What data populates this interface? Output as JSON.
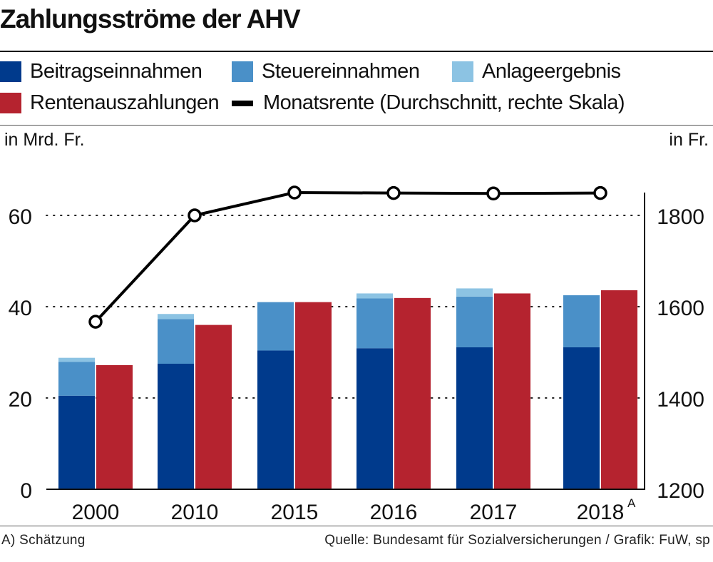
{
  "title": "Zahlungsströme der AHV",
  "legend": {
    "beitrag": "Beitragseinnahmen",
    "steuer": "Steuereinnahmen",
    "anlage": "Anlageergebnis",
    "renten": "Rentenauszahlungen",
    "monat": "Monatsrente (Durchschnitt, rechte Skala)"
  },
  "axis": {
    "left_unit": "in Mrd. Fr.",
    "right_unit": "in Fr."
  },
  "footer": {
    "note": "A) Schätzung",
    "source": "Quelle: Bundesamt für Sozialversicherungen / Grafik: FuW, sp"
  },
  "colors": {
    "beitrag": "#003a8c",
    "steuer": "#4a90c8",
    "anlage": "#8cc3e3",
    "renten": "#b5232f",
    "line": "#000000",
    "grid": "#222222"
  },
  "chart_data": {
    "type": "bar",
    "title": "Zahlungsströme der AHV",
    "categories": [
      "2000",
      "2010",
      "2015",
      "2016",
      "2017",
      "2018"
    ],
    "category_marks": [
      "",
      "",
      "",
      "",
      "",
      "A"
    ],
    "ylabel": "in Mrd. Fr.",
    "ylabel_right": "in Fr.",
    "ylim": [
      0,
      65
    ],
    "yticks": [
      0,
      20,
      40,
      60
    ],
    "ylim_right": [
      1200,
      1850
    ],
    "yticks_right": [
      1200,
      1400,
      1600,
      1800
    ],
    "grid": "dotted at 20, 40, 60",
    "legend_position": "top",
    "series": [
      {
        "name": "Beitragseinnahmen",
        "stack": "income",
        "values": [
          20.5,
          27.5,
          30.4,
          30.9,
          31.1,
          31.1
        ]
      },
      {
        "name": "Steuereinnahmen",
        "stack": "income",
        "values": [
          7.4,
          9.8,
          10.6,
          10.9,
          11.1,
          11.4
        ]
      },
      {
        "name": "Anlageergebnis",
        "stack": "income",
        "values": [
          0.9,
          1.1,
          0.0,
          1.1,
          1.8,
          0.0
        ]
      },
      {
        "name": "Rentenauszahlungen",
        "stack": "payout",
        "values": [
          27.2,
          36.0,
          41.0,
          41.9,
          42.9,
          43.6
        ]
      },
      {
        "name": "Monatsrente (Durchschnitt, rechte Skala)",
        "type": "line",
        "axis": "right",
        "values": [
          1567,
          1800,
          1850,
          1849,
          1848,
          1849
        ]
      }
    ]
  }
}
